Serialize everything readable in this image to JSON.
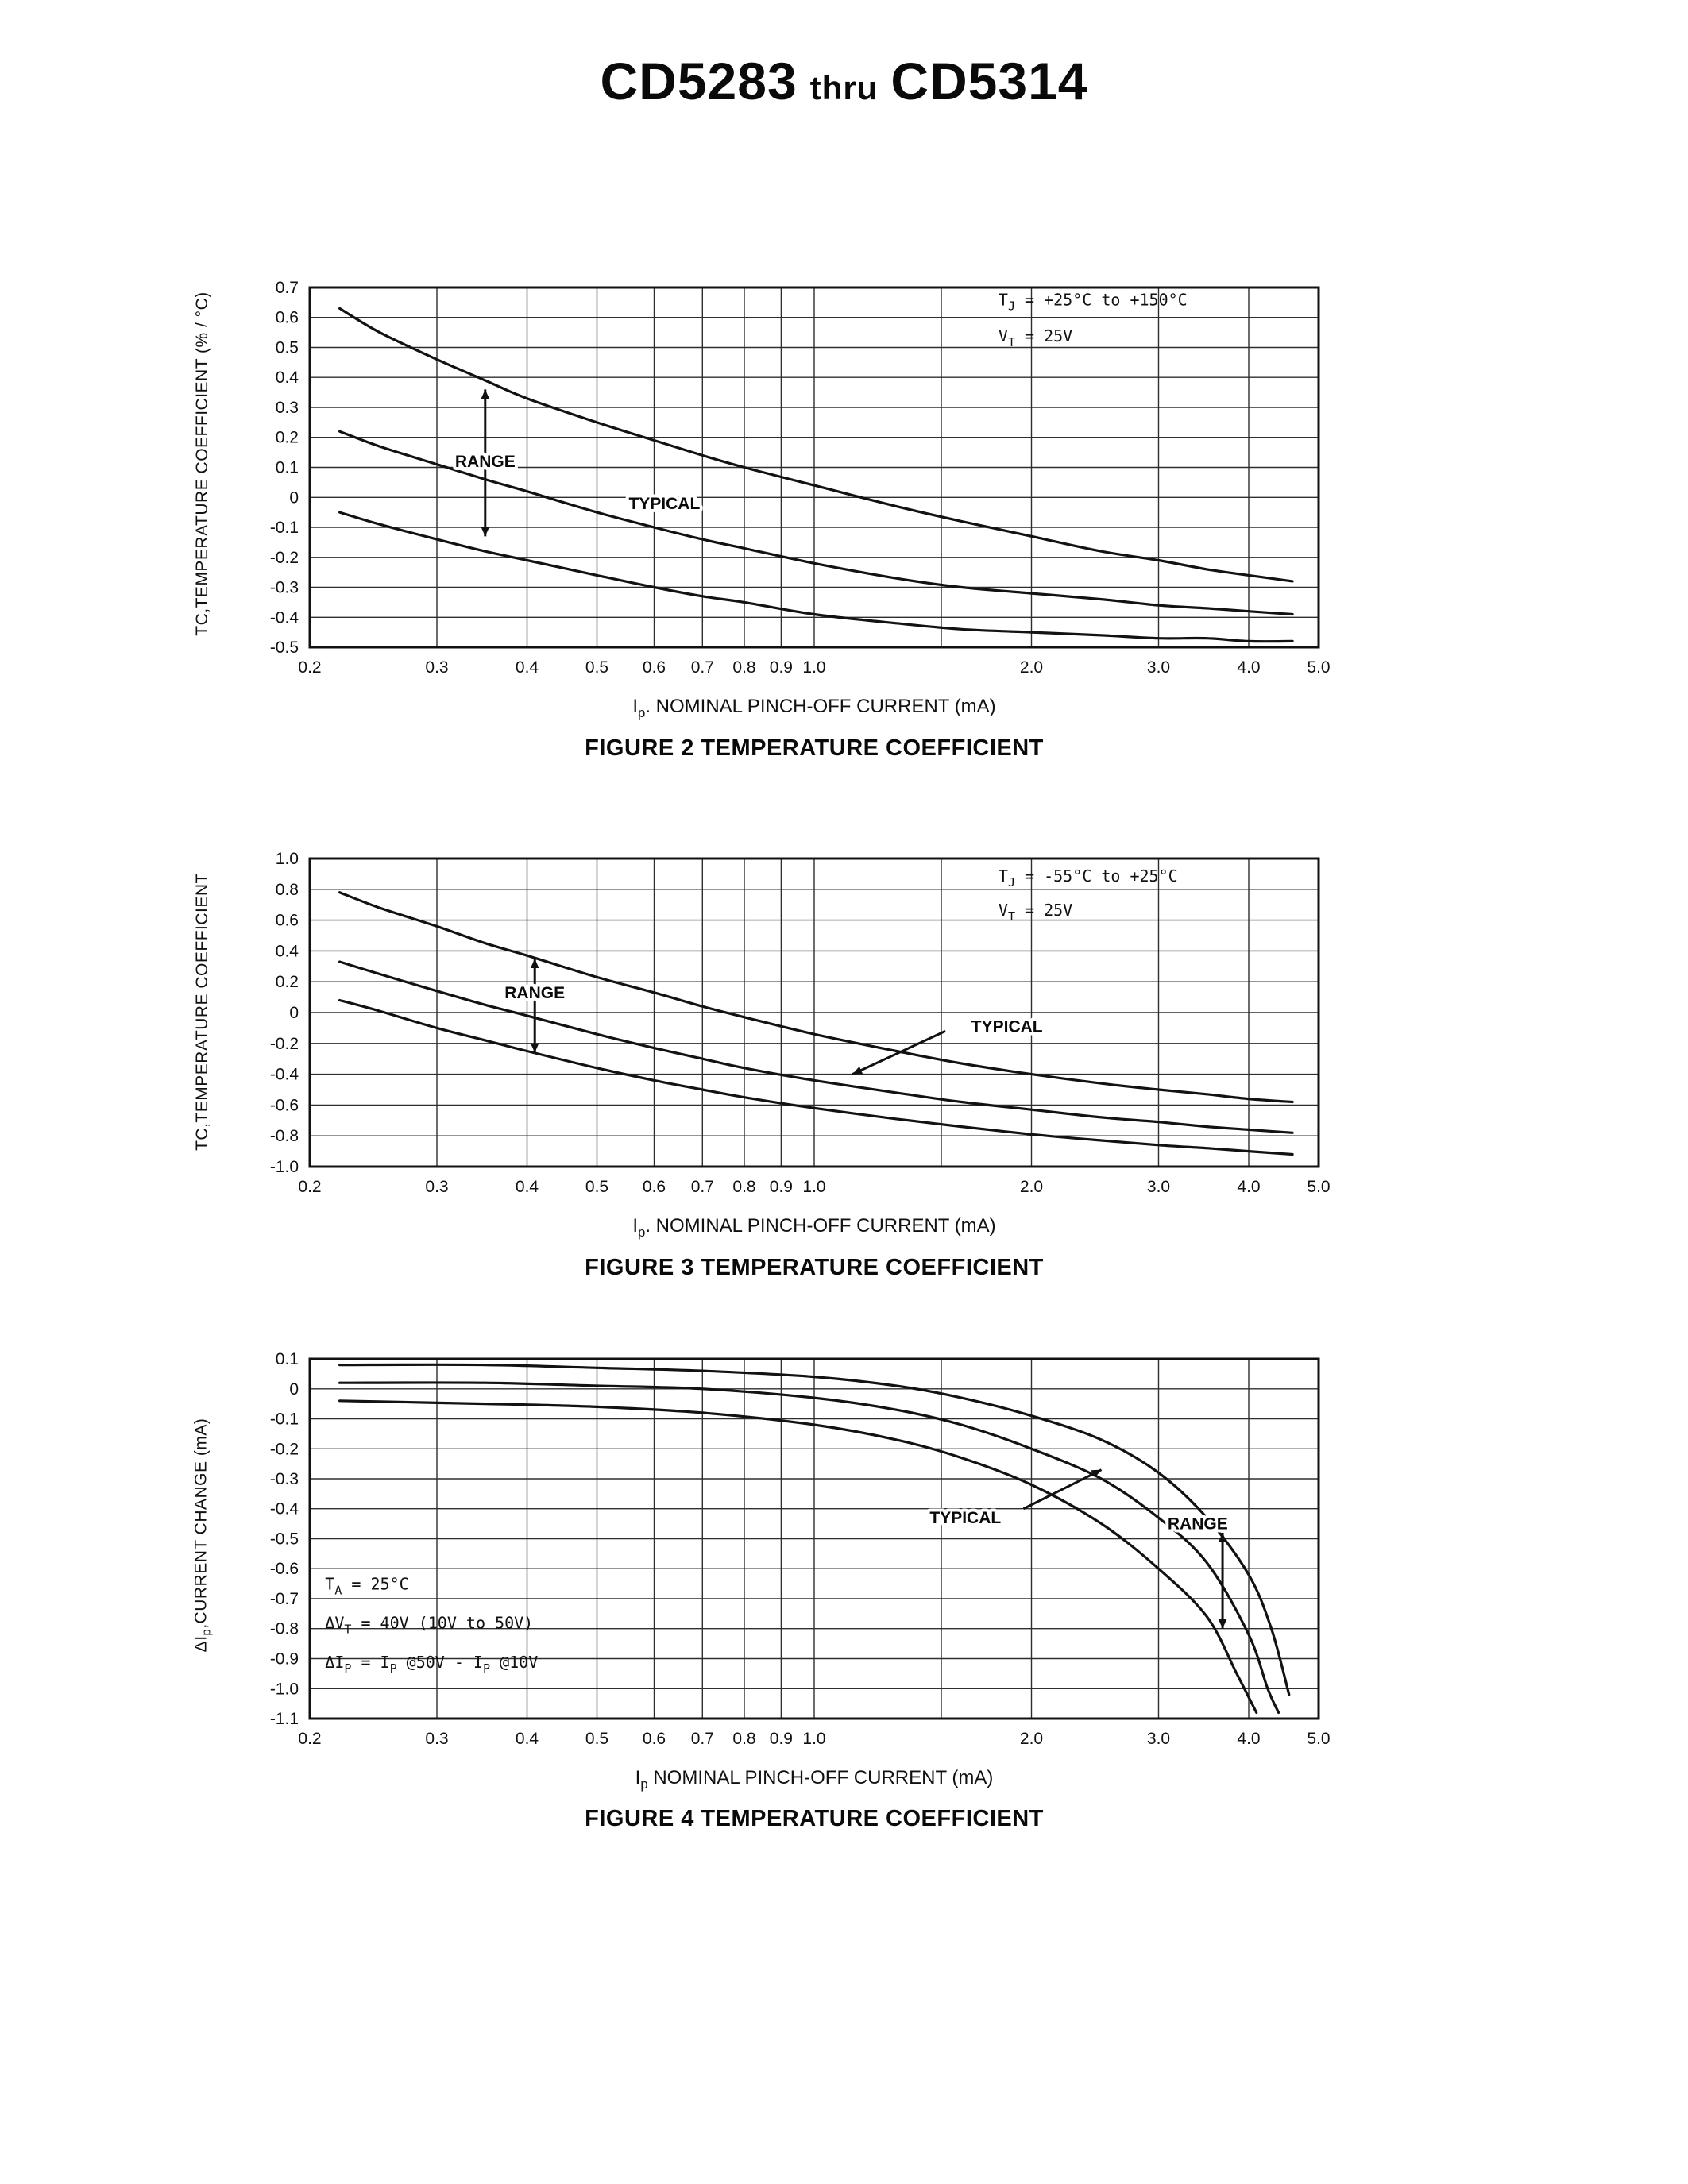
{
  "header": {
    "title_start": "CD5283",
    "title_thru": "thru",
    "title_end": "CD5314"
  },
  "chart_data": [
    {
      "type": "line",
      "title": "FIGURE 2 TEMPERATURE COEFFICIENT",
      "xlabel": "I~p~. NOMINAL PINCH-OFF CURRENT (mA)",
      "ylabel": "TC,TEMPERATURE COEFFICIENT (% / °C)",
      "xscale": "log",
      "xlim": [
        0.2,
        5.0
      ],
      "ylim": [
        -0.5,
        0.7
      ],
      "ystep": 0.1,
      "grid": true,
      "xticks": [
        0.2,
        0.3,
        0.4,
        0.5,
        0.6,
        0.7,
        0.8,
        0.9,
        1.0,
        2.0,
        3.0,
        4.0,
        5.0
      ],
      "xtick_labels": [
        "0.2",
        "0.3",
        "0.4",
        "0.5",
        "0.6",
        "0.7",
        "0.8",
        "0.9",
        "1.0",
        "2.0",
        "3.0",
        "4.0",
        "5.0"
      ],
      "xgrid_extra": [
        1.5
      ],
      "conditions": [
        {
          "text": "T~J~  =  +25°C  to  +150°C",
          "x": 1.8,
          "y": 0.64
        },
        {
          "text": "V~T~  =  25V",
          "x": 1.8,
          "y": 0.52
        }
      ],
      "series": [
        {
          "name": "range-upper",
          "points": [
            [
              0.22,
              0.63
            ],
            [
              0.25,
              0.55
            ],
            [
              0.3,
              0.46
            ],
            [
              0.35,
              0.39
            ],
            [
              0.4,
              0.33
            ],
            [
              0.5,
              0.25
            ],
            [
              0.6,
              0.19
            ],
            [
              0.7,
              0.14
            ],
            [
              0.8,
              0.1
            ],
            [
              1.0,
              0.04
            ],
            [
              1.3,
              -0.03
            ],
            [
              1.6,
              -0.08
            ],
            [
              2.0,
              -0.13
            ],
            [
              2.5,
              -0.18
            ],
            [
              3.0,
              -0.21
            ],
            [
              3.5,
              -0.24
            ],
            [
              4.0,
              -0.26
            ],
            [
              4.6,
              -0.28
            ]
          ]
        },
        {
          "name": "typical",
          "points": [
            [
              0.22,
              0.22
            ],
            [
              0.25,
              0.17
            ],
            [
              0.3,
              0.11
            ],
            [
              0.35,
              0.06
            ],
            [
              0.4,
              0.02
            ],
            [
              0.5,
              -0.05
            ],
            [
              0.6,
              -0.1
            ],
            [
              0.7,
              -0.14
            ],
            [
              0.8,
              -0.17
            ],
            [
              1.0,
              -0.22
            ],
            [
              1.3,
              -0.27
            ],
            [
              1.6,
              -0.3
            ],
            [
              2.0,
              -0.32
            ],
            [
              2.5,
              -0.34
            ],
            [
              3.0,
              -0.36
            ],
            [
              3.5,
              -0.37
            ],
            [
              4.0,
              -0.38
            ],
            [
              4.6,
              -0.39
            ]
          ]
        },
        {
          "name": "range-lower",
          "points": [
            [
              0.22,
              -0.05
            ],
            [
              0.25,
              -0.09
            ],
            [
              0.3,
              -0.14
            ],
            [
              0.35,
              -0.18
            ],
            [
              0.4,
              -0.21
            ],
            [
              0.5,
              -0.26
            ],
            [
              0.6,
              -0.3
            ],
            [
              0.7,
              -0.33
            ],
            [
              0.8,
              -0.35
            ],
            [
              1.0,
              -0.39
            ],
            [
              1.3,
              -0.42
            ],
            [
              1.6,
              -0.44
            ],
            [
              2.0,
              -0.45
            ],
            [
              2.5,
              -0.46
            ],
            [
              3.0,
              -0.47
            ],
            [
              3.5,
              -0.47
            ],
            [
              4.0,
              -0.48
            ],
            [
              4.6,
              -0.48
            ]
          ]
        }
      ],
      "annotations": [
        {
          "kind": "vrange",
          "x": 0.35,
          "y1": 0.36,
          "y2": -0.13
        },
        {
          "kind": "label",
          "text": "RANGE",
          "x": 0.35,
          "y": 0.12
        },
        {
          "kind": "label",
          "text": "TYPICAL",
          "x": 0.62,
          "y": -0.02
        }
      ]
    },
    {
      "type": "line",
      "title": "FIGURE 3 TEMPERATURE COEFFICIENT",
      "xlabel": "I~p~. NOMINAL PINCH-OFF CURRENT (mA)",
      "ylabel": "TC,TEMPERATURE COEFFICIENT",
      "xscale": "log",
      "xlim": [
        0.2,
        5.0
      ],
      "ylim": [
        -1.0,
        1.0
      ],
      "ystep": 0.2,
      "grid": true,
      "xticks": [
        0.2,
        0.3,
        0.4,
        0.5,
        0.6,
        0.7,
        0.8,
        0.9,
        1.0,
        2.0,
        3.0,
        4.0,
        5.0
      ],
      "xtick_labels": [
        "0.2",
        "0.3",
        "0.4",
        "0.5",
        "0.6",
        "0.7",
        "0.8",
        "0.9",
        "1.0",
        "2.0",
        "3.0",
        "4.0",
        "5.0"
      ],
      "xgrid_extra": [
        1.5
      ],
      "conditions": [
        {
          "text": "T~J~  =  -55°C  to  +25°C",
          "x": 1.8,
          "y": 0.85
        },
        {
          "text": "V~T~  =  25V",
          "x": 1.8,
          "y": 0.63
        }
      ],
      "series": [
        {
          "name": "range-upper",
          "points": [
            [
              0.22,
              0.78
            ],
            [
              0.25,
              0.68
            ],
            [
              0.3,
              0.56
            ],
            [
              0.35,
              0.45
            ],
            [
              0.4,
              0.37
            ],
            [
              0.5,
              0.23
            ],
            [
              0.6,
              0.13
            ],
            [
              0.7,
              0.04
            ],
            [
              0.8,
              -0.03
            ],
            [
              1.0,
              -0.14
            ],
            [
              1.3,
              -0.25
            ],
            [
              1.6,
              -0.33
            ],
            [
              2.0,
              -0.4
            ],
            [
              2.5,
              -0.46
            ],
            [
              3.0,
              -0.5
            ],
            [
              3.5,
              -0.53
            ],
            [
              4.0,
              -0.56
            ],
            [
              4.6,
              -0.58
            ]
          ]
        },
        {
          "name": "typical",
          "points": [
            [
              0.22,
              0.33
            ],
            [
              0.25,
              0.25
            ],
            [
              0.3,
              0.14
            ],
            [
              0.35,
              0.05
            ],
            [
              0.4,
              -0.02
            ],
            [
              0.5,
              -0.14
            ],
            [
              0.6,
              -0.23
            ],
            [
              0.7,
              -0.3
            ],
            [
              0.8,
              -0.36
            ],
            [
              1.0,
              -0.44
            ],
            [
              1.3,
              -0.52
            ],
            [
              1.6,
              -0.58
            ],
            [
              2.0,
              -0.63
            ],
            [
              2.5,
              -0.68
            ],
            [
              3.0,
              -0.71
            ],
            [
              3.5,
              -0.74
            ],
            [
              4.0,
              -0.76
            ],
            [
              4.6,
              -0.78
            ]
          ]
        },
        {
          "name": "range-lower",
          "points": [
            [
              0.22,
              0.08
            ],
            [
              0.25,
              0.01
            ],
            [
              0.3,
              -0.1
            ],
            [
              0.35,
              -0.18
            ],
            [
              0.4,
              -0.25
            ],
            [
              0.5,
              -0.36
            ],
            [
              0.6,
              -0.44
            ],
            [
              0.7,
              -0.5
            ],
            [
              0.8,
              -0.55
            ],
            [
              1.0,
              -0.62
            ],
            [
              1.3,
              -0.69
            ],
            [
              1.6,
              -0.74
            ],
            [
              2.0,
              -0.79
            ],
            [
              2.5,
              -0.83
            ],
            [
              3.0,
              -0.86
            ],
            [
              3.5,
              -0.88
            ],
            [
              4.0,
              -0.9
            ],
            [
              4.6,
              -0.92
            ]
          ]
        }
      ],
      "annotations": [
        {
          "kind": "vrange",
          "x": 0.41,
          "y1": 0.35,
          "y2": -0.26
        },
        {
          "kind": "label",
          "text": "RANGE",
          "x": 0.41,
          "y": 0.13
        },
        {
          "kind": "leader",
          "x1": 1.52,
          "y1": -0.12,
          "x2": 1.13,
          "y2": -0.4
        },
        {
          "kind": "label",
          "text": "TYPICAL",
          "x": 1.85,
          "y": -0.09
        }
      ]
    },
    {
      "type": "line",
      "title": "FIGURE 4 TEMPERATURE COEFFICIENT",
      "xlabel": "I~p~ NOMINAL PINCH-OFF CURRENT (mA)",
      "ylabel": "ΔI~p~,CURRENT CHANGE (mA)",
      "xscale": "log",
      "xlim": [
        0.2,
        5.0
      ],
      "ylim": [
        -1.1,
        0.1
      ],
      "ystep": 0.1,
      "grid": true,
      "xticks": [
        0.2,
        0.3,
        0.4,
        0.5,
        0.6,
        0.7,
        0.8,
        0.9,
        1.0,
        2.0,
        3.0,
        4.0,
        5.0
      ],
      "xtick_labels": [
        "0.2",
        "0.3",
        "0.4",
        "0.5",
        "0.6",
        "0.7",
        "0.8",
        "0.9",
        "1.0",
        "2.0",
        "3.0",
        "4.0",
        "5.0"
      ],
      "xgrid_extra": [
        1.5
      ],
      "conditions": [
        {
          "text": "T~A~  =  25°C",
          "x": 0.21,
          "y": -0.67
        },
        {
          "text": "ΔV~T~ =  40V (10V to 50V)",
          "x": 0.21,
          "y": -0.8
        },
        {
          "text": "ΔI~P~ =  I~P~ @50V - I~P~ @10V",
          "x": 0.21,
          "y": -0.93
        }
      ],
      "series": [
        {
          "name": "range-upper",
          "points": [
            [
              0.22,
              0.08
            ],
            [
              0.35,
              0.08
            ],
            [
              0.5,
              0.07
            ],
            [
              0.7,
              0.06
            ],
            [
              1.0,
              0.04
            ],
            [
              1.3,
              0.01
            ],
            [
              1.6,
              -0.03
            ],
            [
              2.0,
              -0.09
            ],
            [
              2.5,
              -0.17
            ],
            [
              3.0,
              -0.28
            ],
            [
              3.5,
              -0.43
            ],
            [
              4.0,
              -0.62
            ],
            [
              4.3,
              -0.8
            ],
            [
              4.55,
              -1.02
            ]
          ]
        },
        {
          "name": "typical",
          "points": [
            [
              0.22,
              0.02
            ],
            [
              0.35,
              0.02
            ],
            [
              0.5,
              0.01
            ],
            [
              0.7,
              0
            ],
            [
              1.0,
              -0.03
            ],
            [
              1.3,
              -0.07
            ],
            [
              1.6,
              -0.12
            ],
            [
              2.0,
              -0.2
            ],
            [
              2.5,
              -0.3
            ],
            [
              3.0,
              -0.43
            ],
            [
              3.5,
              -0.58
            ],
            [
              4.0,
              -0.82
            ],
            [
              4.25,
              -1.0
            ],
            [
              4.4,
              -1.08
            ]
          ]
        },
        {
          "name": "range-lower",
          "points": [
            [
              0.22,
              -0.04
            ],
            [
              0.35,
              -0.05
            ],
            [
              0.5,
              -0.06
            ],
            [
              0.7,
              -0.08
            ],
            [
              1.0,
              -0.12
            ],
            [
              1.3,
              -0.17
            ],
            [
              1.6,
              -0.23
            ],
            [
              2.0,
              -0.32
            ],
            [
              2.5,
              -0.45
            ],
            [
              3.0,
              -0.6
            ],
            [
              3.5,
              -0.76
            ],
            [
              3.85,
              -0.95
            ],
            [
              4.1,
              -1.08
            ]
          ]
        }
      ],
      "annotations": [
        {
          "kind": "leader",
          "x1": 1.95,
          "y1": -0.4,
          "x2": 2.5,
          "y2": -0.27
        },
        {
          "kind": "label",
          "text": "TYPICAL",
          "x": 1.62,
          "y": -0.43
        },
        {
          "kind": "vrange",
          "x": 3.68,
          "y1": -0.48,
          "y2": -0.8
        },
        {
          "kind": "label",
          "text": "RANGE",
          "x": 3.4,
          "y": -0.45
        }
      ]
    }
  ]
}
